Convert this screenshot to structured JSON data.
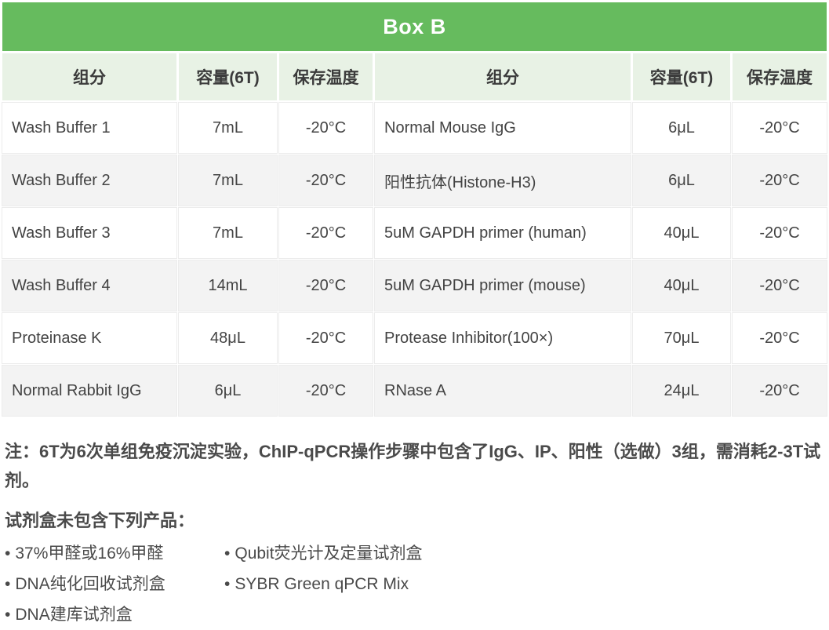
{
  "title": "Box B",
  "colors": {
    "accent_green": "#66bb5e",
    "header_light_green": "#e8f2e5",
    "row_alt_gray": "#f3f3f3",
    "text_dark": "#3f3f3f"
  },
  "table": {
    "headers": [
      "组分",
      "容量(6T)",
      "保存温度",
      "组分",
      "容量(6T)",
      "保存温度"
    ],
    "rows": [
      [
        "Wash Buffer 1",
        "7mL",
        "-20°C",
        "Normal Mouse IgG",
        "6μL",
        "-20°C"
      ],
      [
        "Wash Buffer 2",
        "7mL",
        "-20°C",
        "阳性抗体(Histone-H3)",
        "6μL",
        "-20°C"
      ],
      [
        "Wash Buffer 3",
        "7mL",
        "-20°C",
        "5uM GAPDH primer (human)",
        "40μL",
        "-20°C"
      ],
      [
        "Wash Buffer 4",
        "14mL",
        "-20°C",
        "5uM GAPDH primer (mouse)",
        "40μL",
        "-20°C"
      ],
      [
        "Proteinase K",
        "48μL",
        "-20°C",
        "Protease Inhibitor(100×)",
        "70μL",
        "-20°C"
      ],
      [
        "Normal Rabbit IgG",
        "6μL",
        "-20°C",
        "RNase A",
        "24μL",
        "-20°C"
      ]
    ]
  },
  "notes": {
    "note": "注：6T为6次单组免疫沉淀实验，ChIP-qPCR操作步骤中包含了IgG、IP、阳性（选做）3组，需消耗2-3T试剂。",
    "excluded_heading": "试剂盒未包含下列产品：",
    "bullet": "•",
    "excluded_col1": [
      "37%甲醛或16%甲醛",
      "DNA纯化回收试剂盒",
      "DNA建库试剂盒"
    ],
    "excluded_col2": [
      "Qubit荧光计及定量试剂盒",
      "SYBR Green qPCR Mix"
    ]
  }
}
